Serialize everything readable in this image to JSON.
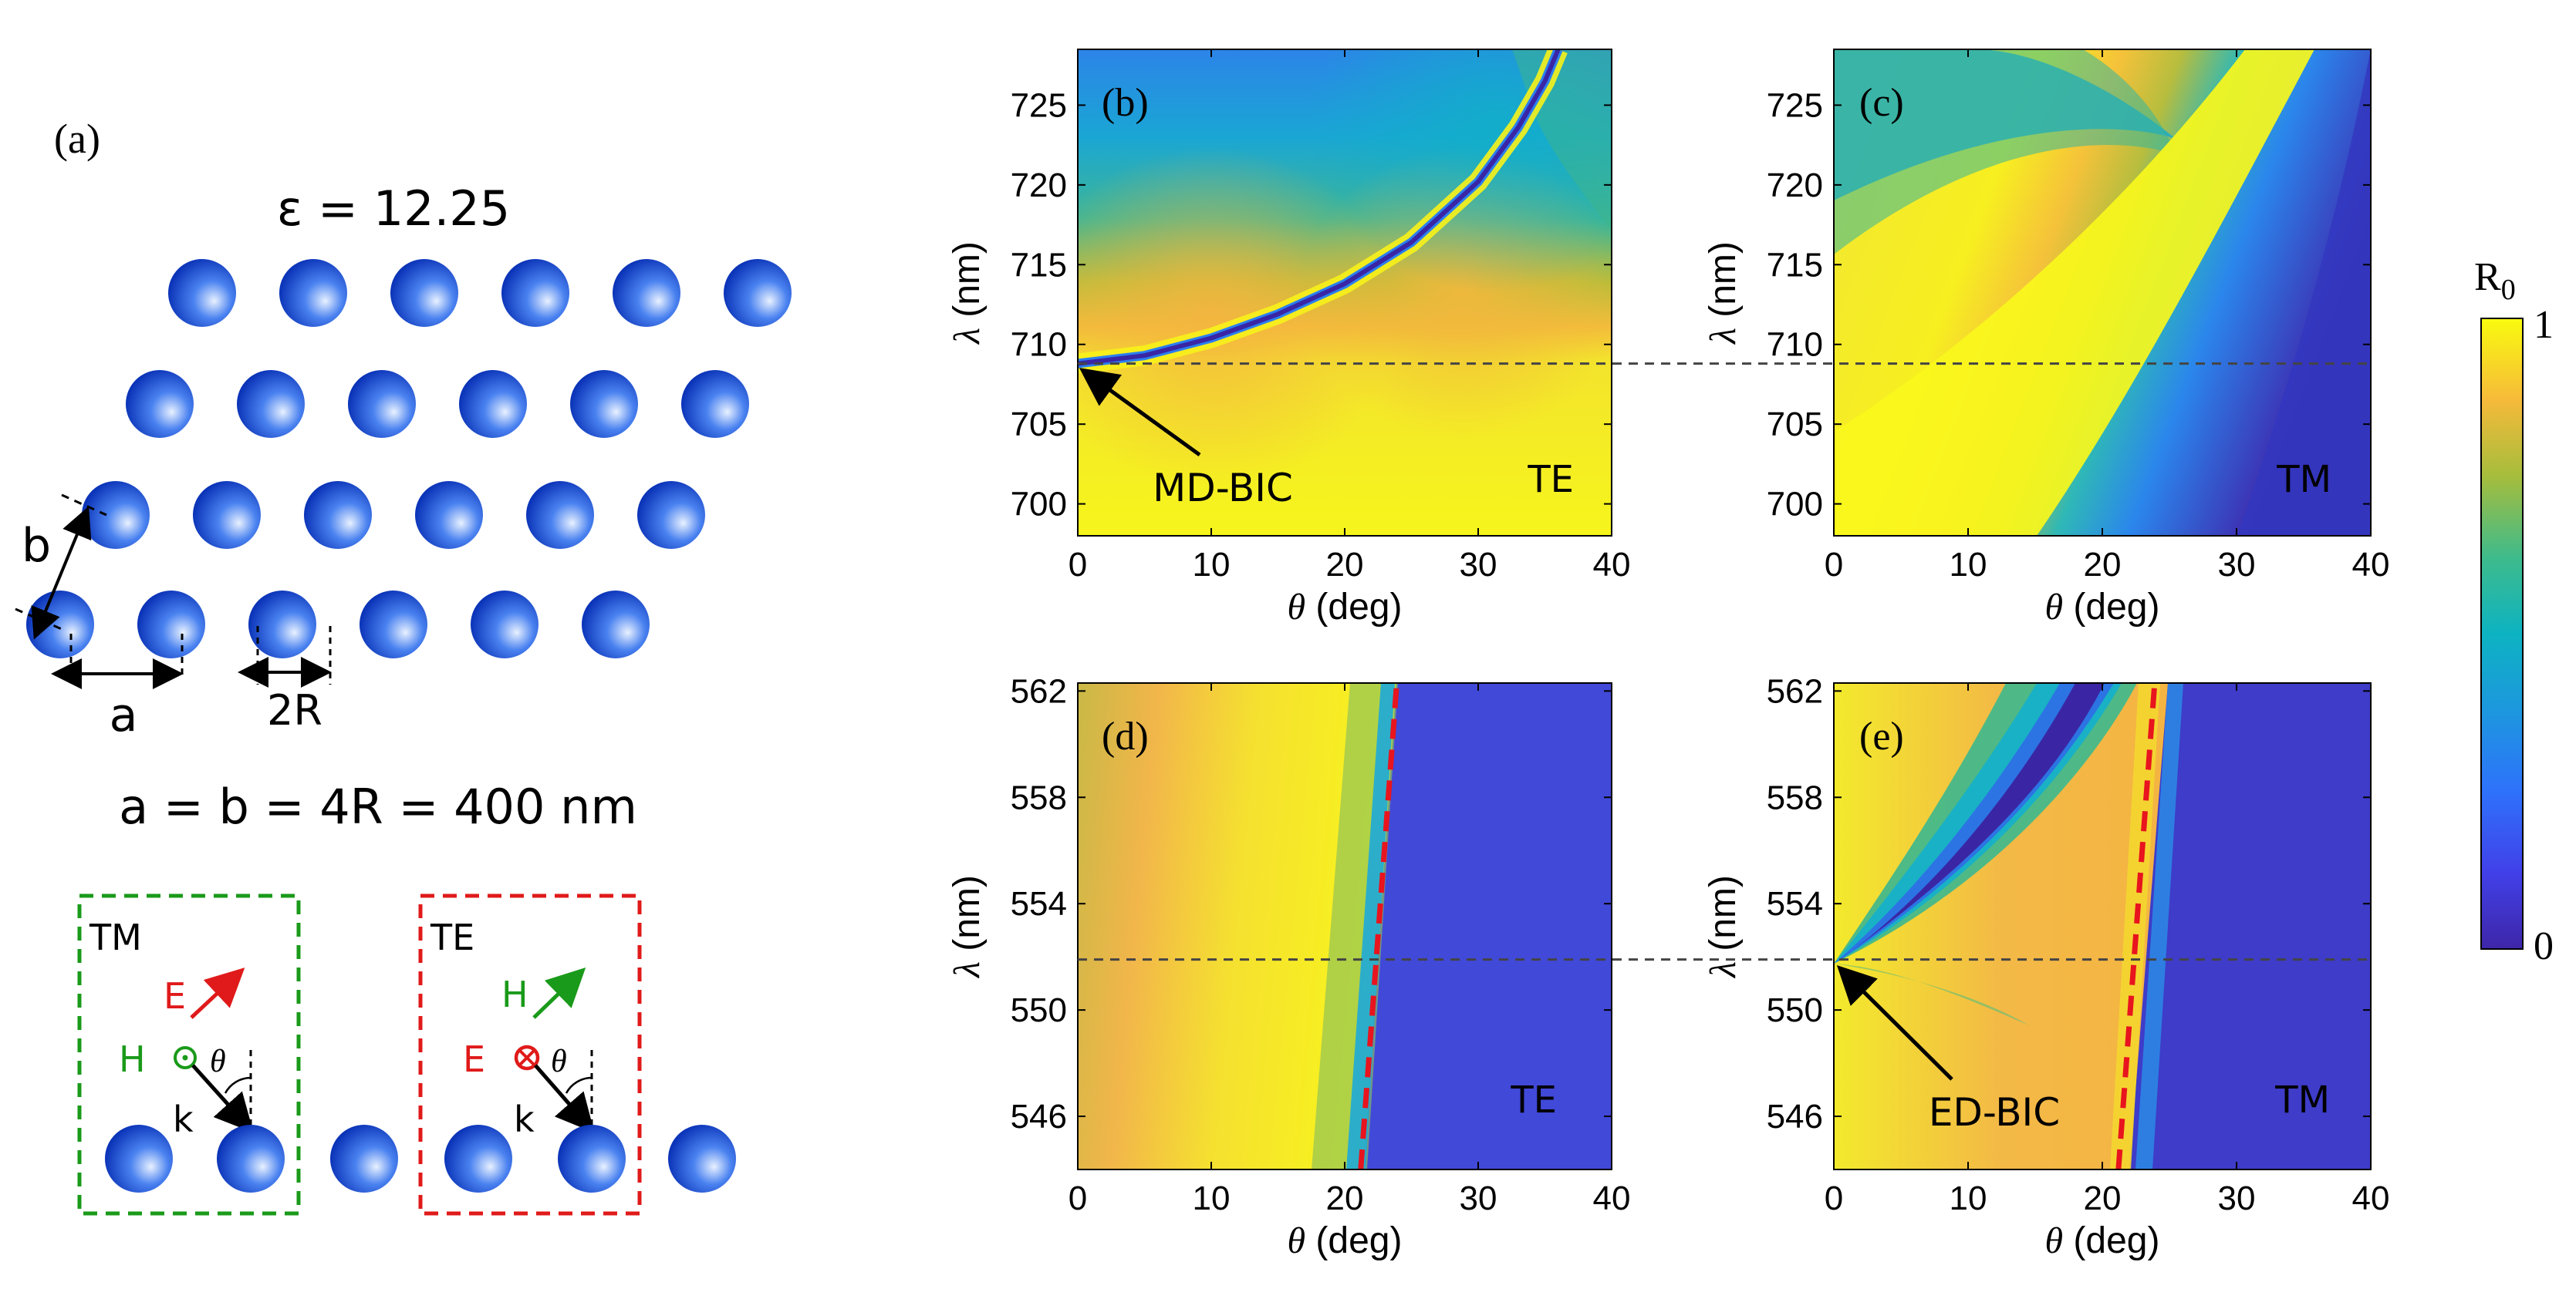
{
  "colors": {
    "sphere_light": "#e8f1ff",
    "sphere_mid": "#4a82f0",
    "sphere_dark": "#0b34b8",
    "tm_box": "#1a9a1a",
    "te_box": "#e01a1a",
    "red": "#e01a1a",
    "green": "#1a9a1a",
    "dash_grey": "#555555",
    "bic_red": "#e8141e",
    "parula_low": "#3e26a8",
    "parula_high": "#f9fb0e"
  },
  "schematic": {
    "panel_label": "(a)",
    "epsilon_label": "ε = 12.25",
    "label_a": "a",
    "label_b": "b",
    "label_2R": "2R",
    "lattice_relation": "a = b = 4R = 400 nm",
    "tm_box": {
      "title": "TM",
      "field_1": "E",
      "field_2": "H",
      "k": "k",
      "angle": "θ"
    },
    "te_box": {
      "title": "TE",
      "field_1": "H",
      "field_2": "E",
      "k": "k",
      "angle": "θ"
    }
  },
  "colorbar": {
    "title": "R",
    "title_sub": "0",
    "max_label": "1",
    "min_label": "0"
  },
  "chart_data": [
    {
      "id": "b",
      "type": "heatmap",
      "panel_label": "(b)",
      "xlabel_symbol": "θ",
      "xlabel_unit": " (deg)",
      "ylabel_symbol": "λ",
      "ylabel_unit": " (nm)",
      "xlim": [
        0,
        40
      ],
      "ylim": [
        698,
        728.5
      ],
      "xticks": [
        0,
        10,
        20,
        30,
        40
      ],
      "yticks": [
        700,
        705,
        710,
        715,
        720,
        725
      ],
      "polarization": "TE",
      "bic_label": "MD-BIC",
      "bic_point": [
        0,
        708.8
      ],
      "reference_line_lambda": 708.8,
      "resonance_curve": {
        "description": "TE resonance dip",
        "theta": [
          0,
          5,
          10,
          15,
          20,
          25,
          30,
          33,
          35,
          36
        ],
        "lambda": [
          708.8,
          709.3,
          710.4,
          711.9,
          713.8,
          716.4,
          720.2,
          723.6,
          726.5,
          728.5
        ]
      }
    },
    {
      "id": "c",
      "type": "heatmap",
      "panel_label": "(c)",
      "xlabel_symbol": "θ",
      "xlabel_unit": " (deg)",
      "ylabel_symbol": "λ",
      "ylabel_unit": " (nm)",
      "xlim": [
        0,
        40
      ],
      "ylim": [
        698,
        728.5
      ],
      "xticks": [
        0,
        10,
        20,
        30,
        40
      ],
      "yticks": [
        700,
        705,
        710,
        715,
        720,
        725
      ],
      "polarization": "TM",
      "reference_line_lambda": 708.8
    },
    {
      "id": "d",
      "type": "heatmap",
      "panel_label": "(d)",
      "xlabel_symbol": "θ",
      "xlabel_unit": " (deg)",
      "ylabel_symbol": "λ",
      "ylabel_unit": " (nm)",
      "xlim": [
        0,
        40
      ],
      "ylim": [
        544,
        562.3
      ],
      "xticks": [
        0,
        10,
        20,
        30,
        40
      ],
      "yticks": [
        546,
        550,
        554,
        558,
        562
      ],
      "polarization": "TE",
      "reference_line_lambda": 551.9,
      "brewster_line": {
        "theta": [
          21.2,
          23.9
        ],
        "lambda": [
          544,
          562.3
        ]
      }
    },
    {
      "id": "e",
      "type": "heatmap",
      "panel_label": "(e)",
      "xlabel_symbol": "θ",
      "xlabel_unit": " (deg)",
      "ylabel_symbol": "λ",
      "ylabel_unit": " (nm)",
      "xlim": [
        0,
        40
      ],
      "ylim": [
        544,
        562.3
      ],
      "xticks": [
        0,
        10,
        20,
        30,
        40
      ],
      "yticks": [
        546,
        550,
        554,
        558,
        562
      ],
      "polarization": "TM",
      "bic_label": "ED-BIC",
      "bic_point": [
        0,
        551.9
      ],
      "reference_line_lambda": 551.9,
      "brewster_line": {
        "theta": [
          21.2,
          23.9
        ],
        "lambda": [
          544,
          562.3
        ]
      }
    }
  ]
}
